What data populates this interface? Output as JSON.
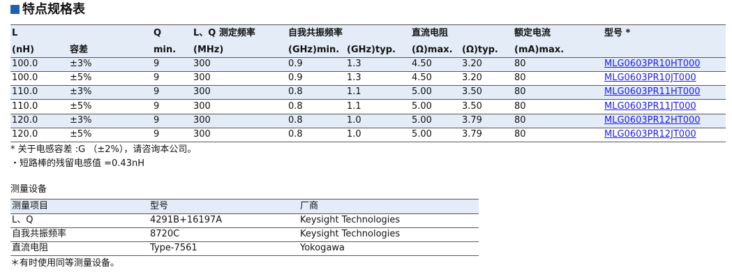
{
  "title": "特点规格表",
  "spec_table": {
    "header_row1": [
      "L",
      "Q",
      "L、Q 测定频率",
      "自我共振频率",
      "直流电阻",
      "额定电流",
      "型号 *"
    ],
    "header_row2": [
      "(nH)",
      "容差",
      "min.",
      "(MHz)",
      "(GHz)min.",
      "(GHz)typ.",
      "(Ω)max.",
      "(Ω)typ.",
      "(mA)max."
    ],
    "rows": [
      [
        "100.0",
        "±3%",
        "9",
        "300",
        "0.9",
        "1.3",
        "4.50",
        "3.20",
        "80",
        "MLG0603PR10HT000"
      ],
      [
        "100.0",
        "±5%",
        "9",
        "300",
        "0.9",
        "1.3",
        "4.50",
        "3.20",
        "80",
        "MLG0603PR10JT000"
      ],
      [
        "110.0",
        "±3%",
        "9",
        "300",
        "0.8",
        "1.1",
        "5.00",
        "3.50",
        "80",
        "MLG0603PR11HT000"
      ],
      [
        "110.0",
        "±5%",
        "9",
        "300",
        "0.8",
        "1.1",
        "5.00",
        "3.50",
        "80",
        "MLG0603PR11JT000"
      ],
      [
        "120.0",
        "±3%",
        "9",
        "300",
        "0.8",
        "1.0",
        "5.00",
        "3.79",
        "80",
        "MLG0603PR12HT000"
      ],
      [
        "120.0",
        "±5%",
        "9",
        "300",
        "0.8",
        "1.0",
        "5.00",
        "3.79",
        "80",
        "MLG0603PR12JT000"
      ]
    ]
  },
  "notes": [
    "* 关于电感容差 :G （±2%），请咨询本公司。",
    "・短路棒的残留电感值 =0.43nH"
  ],
  "equipment": {
    "title": "测量设备",
    "header": [
      "测量项目",
      "型号",
      "厂商"
    ],
    "rows": [
      [
        "L、Q",
        "4291B+16197A",
        "Keysight Technologies"
      ],
      [
        "自我共振频率",
        "8720C",
        "Keysight Technologies"
      ],
      [
        "直流电阻",
        "Type-7561",
        "Yokogawa"
      ]
    ]
  },
  "footnote": "＊有时使用同等测量设备。"
}
